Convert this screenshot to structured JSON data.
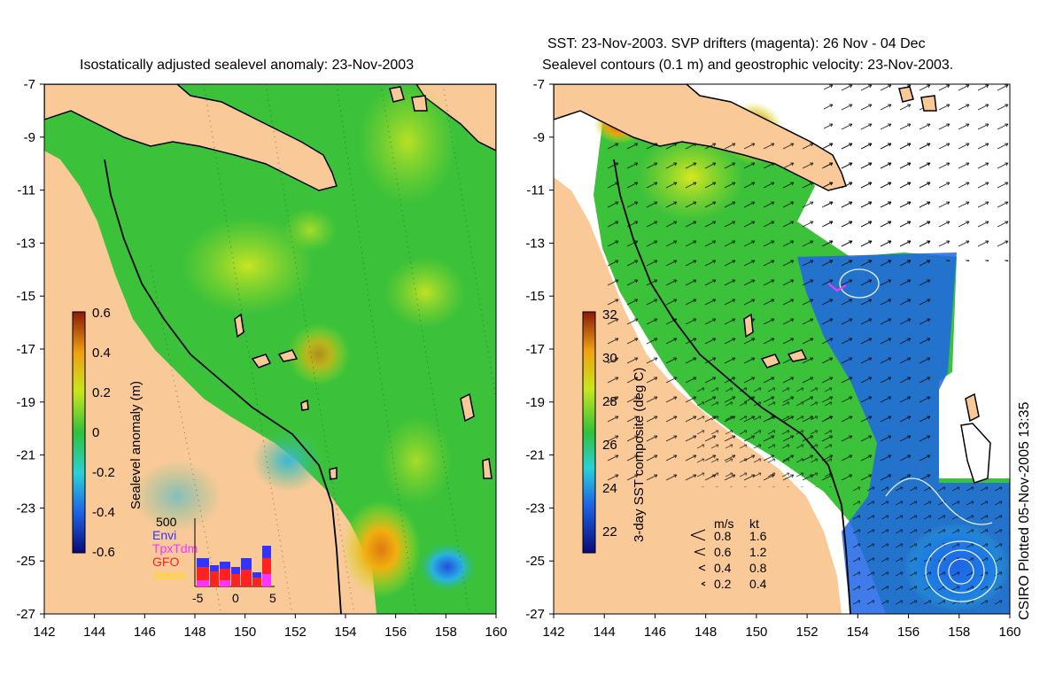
{
  "left_panel": {
    "title": "Isostatically adjusted sealevel anomaly: 23-Nov-2003",
    "colorbar": {
      "label": "Sealevel anomaly (m)",
      "ticks": [
        "0.6",
        "0.4",
        "0.2",
        "0",
        "-0.2",
        "-0.4",
        "-0.6"
      ]
    },
    "inset": {
      "max_label": "500",
      "legend": [
        {
          "name": "Envi",
          "color": "#3333ff"
        },
        {
          "name": "TpxTdm",
          "color": "#ff33ff"
        },
        {
          "name": "GFO",
          "color": "#ff2222"
        },
        {
          "name": "Jason",
          "color": "#ffdd00"
        }
      ],
      "x_ticks": [
        "-5",
        "0",
        "5"
      ]
    }
  },
  "right_panel": {
    "title_line1": "SST: 23-Nov-2003. SVP drifters (magenta): 26 Nov - 04 Dec",
    "title_line2": "Sealevel contours (0.1 m) and geostrophic velocity: 23-Nov-2003.",
    "colorbar": {
      "label": "3-day SST composite (deg C)",
      "ticks": [
        "32",
        "30",
        "28",
        "26",
        "24",
        "22"
      ]
    },
    "velocity_legend": {
      "header_ms": "m/s",
      "header_kt": "kt",
      "rows": [
        {
          "ms": "0.8",
          "kt": "1.6"
        },
        {
          "ms": "0.6",
          "kt": "1.2"
        },
        {
          "ms": "0.4",
          "kt": "0.8"
        },
        {
          "ms": "0.2",
          "kt": "0.4"
        }
      ]
    }
  },
  "axes": {
    "x_ticks": [
      "142",
      "144",
      "146",
      "148",
      "150",
      "152",
      "154",
      "156",
      "158",
      "160"
    ],
    "y_ticks": [
      "-7",
      "-9",
      "-11",
      "-13",
      "-15",
      "-17",
      "-19",
      "-21",
      "-23",
      "-25",
      "-27"
    ]
  },
  "plotted_note": "CSIRO Plotted 05-Nov-2005 13:35",
  "colors": {
    "land": "#f9c998",
    "ocean_green": "#3cc23a",
    "ssh_high": "#c8e61e",
    "ssh_low": "#2db4d2",
    "sst_low": "#1e64e6"
  }
}
